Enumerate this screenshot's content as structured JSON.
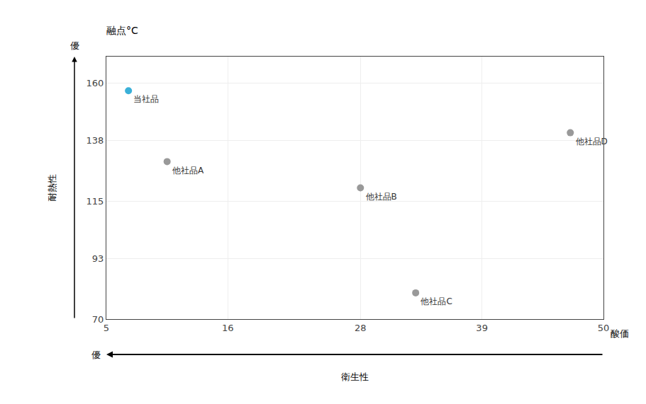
{
  "chart_data": {
    "type": "scatter",
    "title": "融点°C",
    "xlabel": "衛生性",
    "ylabel": "耐熱性",
    "annotations": [
      "優",
      "酸価",
      "優"
    ],
    "x": [
      7,
      10.5,
      28,
      33,
      47
    ],
    "values": [
      157,
      130,
      120,
      80,
      141
    ],
    "labels": [
      "当社品",
      "他社品A",
      "他社品B",
      "他社品C",
      "他社品D"
    ],
    "colors": [
      "#3ab0d8",
      "#999999",
      "#999999",
      "#999999",
      "#999999"
    ],
    "xlim": [
      5,
      50
    ],
    "ylim": [
      70,
      170
    ],
    "xticks": [
      5,
      16,
      28,
      39,
      50
    ],
    "yticks": [
      70,
      93,
      115,
      138,
      160
    ],
    "grid": true
  }
}
